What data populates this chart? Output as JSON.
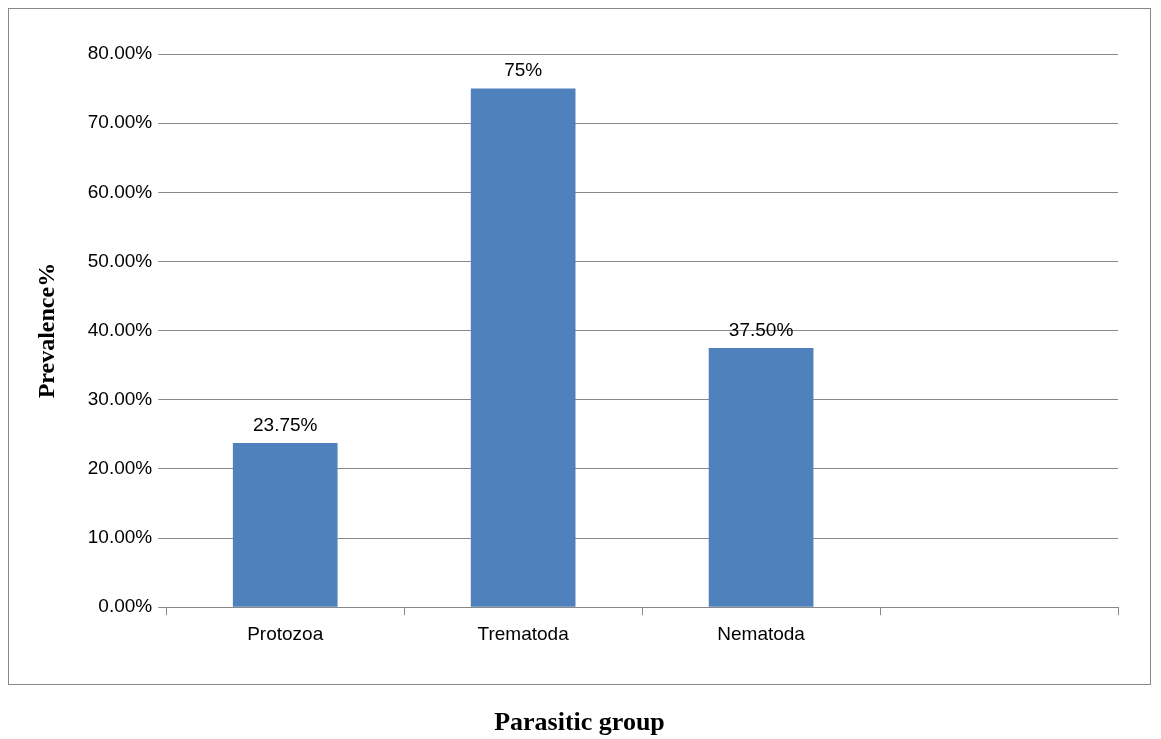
{
  "chart_data": {
    "type": "bar",
    "categories": [
      "Protozoa",
      "Trematoda",
      "Nematoda",
      null
    ],
    "values": [
      23.75,
      75,
      37.5,
      null
    ],
    "value_labels": [
      "23.75%",
      "75%",
      "37.50%",
      null
    ],
    "color": "#4f81bd",
    "ylabel": "Prevalence%",
    "xlabel": "Parasitic group",
    "ylim": [
      0,
      80
    ],
    "yticks": [
      {
        "value": 0,
        "label": "0.00%"
      },
      {
        "value": 10,
        "label": "10.00%"
      },
      {
        "value": 20,
        "label": "20.00%"
      },
      {
        "value": 30,
        "label": "30.00%"
      },
      {
        "value": 40,
        "label": "40.00%"
      },
      {
        "value": 50,
        "label": "50.00%"
      },
      {
        "value": 60,
        "label": "60.00%"
      },
      {
        "value": 70,
        "label": "70.00%"
      },
      {
        "value": 80,
        "label": "80.00%"
      }
    ],
    "grid": "y",
    "legend": false
  }
}
